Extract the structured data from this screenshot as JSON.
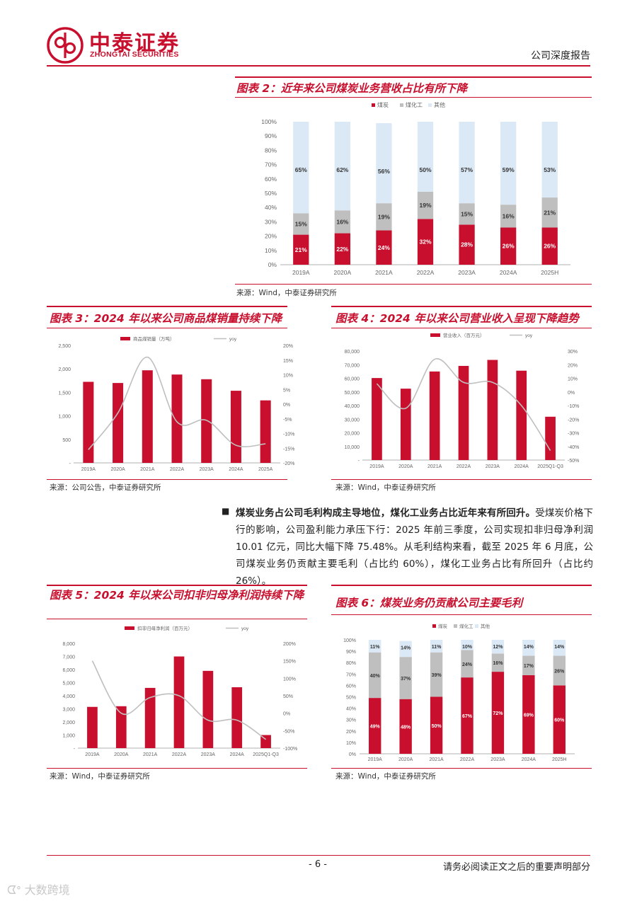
{
  "header": {
    "logo_cn": "中泰证券",
    "logo_en": "ZHONGTAI SECURITIES",
    "report_type": "公司深度报告"
  },
  "colors": {
    "red": "#c8102e",
    "gray": "#bfbfbf",
    "lightblue": "#dbe8f5",
    "line": "#bfbfbf"
  },
  "charts": {
    "c2": {
      "title": "图表 2：近年来公司煤炭业务营收占比有所下降",
      "source": "来源：Wind，中泰证券研究所"
    },
    "c3": {
      "title": "图表 3：2024 年以来公司商品煤销量持续下降",
      "source": "来源：公司公告，中泰证券研究所"
    },
    "c4": {
      "title": "图表 4：2024 年以来公司营业收入呈现下降趋势",
      "source": "来源：Wind，中泰证券研究所"
    },
    "c5": {
      "title": "图表 5：2024 年以来公司扣非归母净利润持续下降",
      "source": "来源：Wind，中泰证券研究所"
    },
    "c6": {
      "title": "图表 6：煤炭业务仍贡献公司主要毛利",
      "source": "来源：Wind，中泰证券研究所"
    }
  },
  "body": {
    "paragraph_bold": "煤炭业务占公司毛利构成主导地位，煤化工业务占比近年来有所回升。",
    "paragraph_rest": "受煤炭价格下行的影响，公司盈利能力承压下行：2025 年前三季度，公司实现扣非归母净利润 10.01 亿元，同比大幅下降 75.48%。从毛利结构来看，截至 2025 年 6 月底，公司煤炭业务仍贡献主要毛利（占比约 60%），煤化工业务占比有所回升（占比约 26%）。"
  },
  "footer": {
    "page_number": "- 6 -",
    "disclaimer": "请务必阅读正文之后的重要声明部分",
    "watermark": "大数跨境"
  },
  "chart_data": [
    {
      "id": "c2",
      "type": "bar",
      "stacked": true,
      "categories": [
        "2019A",
        "2020A",
        "2021A",
        "2022A",
        "2023A",
        "2024A",
        "2025H"
      ],
      "series": [
        {
          "name": "煤炭",
          "values": [
            21,
            22,
            24,
            32,
            28,
            26,
            26
          ]
        },
        {
          "name": "煤化工",
          "values": [
            15,
            16,
            19,
            19,
            15,
            16,
            21
          ]
        },
        {
          "name": "其他",
          "values": [
            65,
            62,
            56,
            50,
            57,
            59,
            53
          ]
        }
      ],
      "ylim": [
        0,
        100
      ],
      "yticks": [
        "0%",
        "10%",
        "20%",
        "30%",
        "40%",
        "50%",
        "60%",
        "70%",
        "80%",
        "90%",
        "100%"
      ],
      "legend": "top"
    },
    {
      "id": "c3",
      "type": "bar",
      "categories": [
        "2019A",
        "2020A",
        "2021A",
        "2022A",
        "2023A",
        "2024A",
        "2025A"
      ],
      "series": [
        {
          "name": "商品煤销量（万吨）",
          "type": "bar",
          "axis": "left",
          "values": [
            1725,
            1700,
            1970,
            1880,
            1780,
            1535,
            1330
          ]
        },
        {
          "name": "yoy",
          "type": "line",
          "axis": "right",
          "values": [
            -15.5,
            -3,
            16,
            -6,
            -5.5,
            -14,
            -13.5
          ]
        }
      ],
      "ylim_left": [
        0,
        2500
      ],
      "yticks_left": [
        "-",
        "500",
        "1,000",
        "1,500",
        "2,000",
        "2,500"
      ],
      "ylim_right": [
        -20,
        20
      ],
      "yticks_right": [
        "-20%",
        "-15%",
        "-10%",
        "-5%",
        "0%",
        "5%",
        "10%",
        "15%",
        "20%"
      ],
      "legend": "top"
    },
    {
      "id": "c4",
      "type": "bar",
      "categories": [
        "2019A",
        "2020A",
        "2021A",
        "2022A",
        "2023A",
        "2024A",
        "2025Q1-Q3"
      ],
      "series": [
        {
          "name": "营业收入（百万元）",
          "type": "bar",
          "axis": "left",
          "values": [
            60200,
            52400,
            65000,
            69100,
            73500,
            65600,
            31800
          ]
        },
        {
          "name": "yoy",
          "type": "line",
          "axis": "right",
          "values": [
            6,
            -12,
            24,
            7,
            7,
            -10,
            -43
          ]
        }
      ],
      "ylim_left": [
        0,
        80000
      ],
      "yticks_left": [
        "-",
        "10,000",
        "20,000",
        "30,000",
        "40,000",
        "50,000",
        "60,000",
        "70,000",
        "80,000"
      ],
      "ylim_right": [
        -50,
        30
      ],
      "yticks_right": [
        "-50%",
        "-40%",
        "-30%",
        "-20%",
        "-10%",
        "0%",
        "10%",
        "20%",
        "30%"
      ],
      "legend": "top"
    },
    {
      "id": "c5",
      "type": "bar",
      "categories": [
        "2019A",
        "2020A",
        "2021A",
        "2022A",
        "2023A",
        "2024A",
        "2025Q1-Q3"
      ],
      "series": [
        {
          "name": "扣非归母净利润（百万元）",
          "type": "bar",
          "axis": "left",
          "values": [
            3150,
            3200,
            4600,
            7000,
            5900,
            4650,
            1000
          ]
        },
        {
          "name": "yoy",
          "type": "line",
          "axis": "right",
          "values": [
            150,
            0,
            45,
            50,
            -20,
            -20,
            -75
          ]
        }
      ],
      "ylim_left": [
        0,
        8000
      ],
      "yticks_left": [
        "-",
        "1,000",
        "2,000",
        "3,000",
        "4,000",
        "5,000",
        "6,000",
        "7,000",
        "8,000"
      ],
      "ylim_right": [
        -100,
        200
      ],
      "yticks_right": [
        "-100%",
        "-50%",
        "0%",
        "50%",
        "100%",
        "150%",
        "200%"
      ],
      "legend": "top"
    },
    {
      "id": "c6",
      "type": "bar",
      "stacked": true,
      "categories": [
        "2019A",
        "2020A",
        "2021A",
        "2022A",
        "2023A",
        "2024A",
        "2025H"
      ],
      "series": [
        {
          "name": "煤炭",
          "values": [
            49,
            48,
            50,
            67,
            72,
            69,
            60
          ]
        },
        {
          "name": "煤化工",
          "values": [
            40,
            37,
            39,
            24,
            16,
            17,
            26
          ]
        },
        {
          "name": "其他",
          "values": [
            11,
            14,
            11,
            10,
            12,
            14,
            14
          ]
        }
      ],
      "ylim": [
        0,
        100
      ],
      "yticks": [
        "0%",
        "10%",
        "20%",
        "30%",
        "40%",
        "50%",
        "60%",
        "70%",
        "80%",
        "90%",
        "100%"
      ],
      "legend": "top"
    }
  ]
}
